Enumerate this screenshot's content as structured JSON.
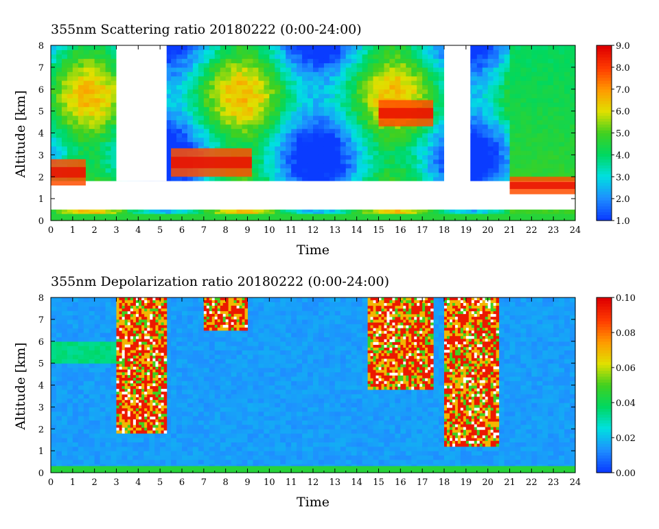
{
  "chart_data": [
    {
      "type": "heatmap",
      "title": "355nm Scattering ratio  20180222 (0:00-24:00)",
      "xlabel": "Time",
      "ylabel": "Altitude [km]",
      "xlim": [
        0,
        24
      ],
      "ylim": [
        0,
        8
      ],
      "xticks": [
        "0",
        "1",
        "2",
        "3",
        "4",
        "5",
        "6",
        "7",
        "8",
        "9",
        "10",
        "11",
        "12",
        "13",
        "14",
        "15",
        "16",
        "17",
        "18",
        "19",
        "20",
        "21",
        "22",
        "23",
        "24"
      ],
      "yticks": [
        "0",
        "1",
        "2",
        "3",
        "4",
        "5",
        "6",
        "7",
        "8"
      ],
      "colorbar": {
        "min": 1.0,
        "max": 9.0,
        "ticks": [
          "1.0",
          "2.0",
          "3.0",
          "4.0",
          "5.0",
          "6.0",
          "7.0",
          "8.0",
          "9.0"
        ],
        "colormap": [
          "#0a3cff",
          "#1e90ff",
          "#00e0e0",
          "#00d860",
          "#40d020",
          "#e0e000",
          "#ff9a00",
          "#ff3c00",
          "#e00000"
        ]
      },
      "features": [
        {
          "kind": "no-data",
          "t_start": 3.0,
          "t_end": 5.3,
          "z_bottom": 1.8,
          "z_top": 8.0
        },
        {
          "kind": "no-data",
          "t_start": 0.0,
          "t_end": 24.0,
          "z_bottom": 0.5,
          "z_top": 1.8
        },
        {
          "kind": "no-data",
          "t_start": 18.0,
          "t_end": 19.2,
          "z_bottom": 1.4,
          "z_top": 8.0
        },
        {
          "kind": "high-value-layer",
          "t_start": 0.0,
          "t_end": 1.6,
          "z_bottom": 1.6,
          "z_top": 2.8
        },
        {
          "kind": "high-value-layer",
          "t_start": 5.5,
          "t_end": 9.2,
          "z_bottom": 2.0,
          "z_top": 3.3
        },
        {
          "kind": "high-value-layer",
          "t_start": 15.0,
          "t_end": 17.5,
          "z_bottom": 4.3,
          "z_top": 5.5
        },
        {
          "kind": "high-value-layer",
          "t_start": 21.0,
          "t_end": 24.0,
          "z_bottom": 1.2,
          "z_top": 2.0
        }
      ]
    },
    {
      "type": "heatmap",
      "title": "355nm Depolarization ratio  20180222 (0:00-24:00)",
      "xlabel": "Time",
      "ylabel": "Altitude [km]",
      "xlim": [
        0,
        24
      ],
      "ylim": [
        0,
        8
      ],
      "xticks": [
        "0",
        "1",
        "2",
        "3",
        "4",
        "5",
        "6",
        "7",
        "8",
        "9",
        "10",
        "11",
        "12",
        "13",
        "14",
        "15",
        "16",
        "17",
        "18",
        "19",
        "20",
        "21",
        "22",
        "23",
        "24"
      ],
      "yticks": [
        "0",
        "1",
        "2",
        "3",
        "4",
        "5",
        "6",
        "7",
        "8"
      ],
      "colorbar": {
        "min": 0.0,
        "max": 0.1,
        "ticks": [
          "0.00",
          "0.02",
          "0.04",
          "0.06",
          "0.08",
          "0.10"
        ],
        "colormap": [
          "#0a3cff",
          "#1e90ff",
          "#00e0e0",
          "#00d860",
          "#40d020",
          "#e0e000",
          "#ff9a00",
          "#ff3c00",
          "#e00000"
        ]
      },
      "features": [
        {
          "kind": "high-value-column",
          "t_start": 3.0,
          "t_end": 5.3,
          "z_bottom": 1.8,
          "z_top": 8.0
        },
        {
          "kind": "high-value-column",
          "t_start": 18.0,
          "t_end": 20.5,
          "z_bottom": 1.2,
          "z_top": 8.0
        },
        {
          "kind": "high-value-cloud",
          "t_start": 14.5,
          "t_end": 17.5,
          "z_bottom": 3.8,
          "z_top": 8.0
        },
        {
          "kind": "high-value-cloud",
          "t_start": 7.0,
          "t_end": 9.0,
          "z_bottom": 6.5,
          "z_top": 8.0
        }
      ]
    }
  ]
}
